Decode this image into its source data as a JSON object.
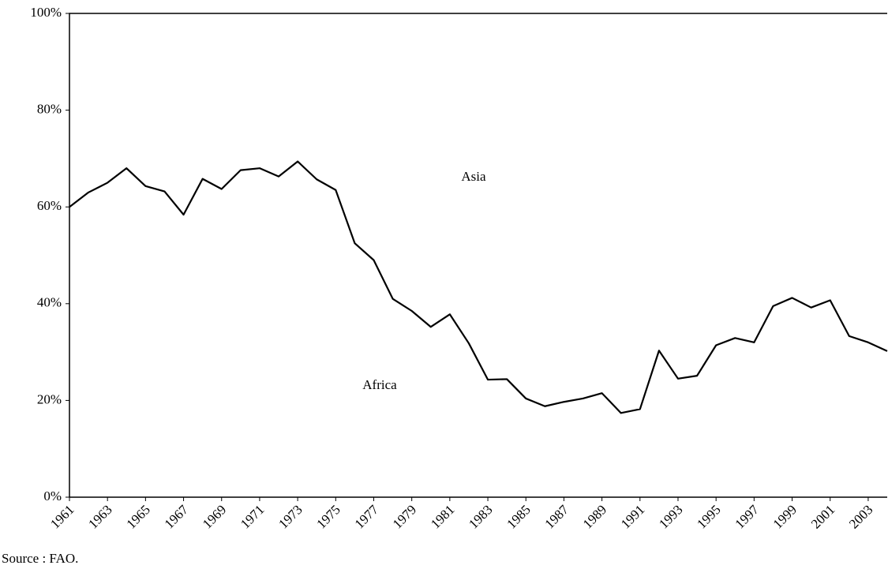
{
  "chart_data": {
    "type": "line",
    "x": [
      1961,
      1962,
      1963,
      1964,
      1965,
      1966,
      1967,
      1968,
      1969,
      1970,
      1971,
      1972,
      1973,
      1974,
      1975,
      1976,
      1977,
      1978,
      1979,
      1980,
      1981,
      1982,
      1983,
      1984,
      1985,
      1986,
      1987,
      1988,
      1989,
      1990,
      1991,
      1992,
      1993,
      1994,
      1995,
      1996,
      1997,
      1998,
      1999,
      2000,
      2001,
      2002,
      2003,
      2004
    ],
    "values": [
      60,
      63,
      65,
      68,
      64.3,
      63.2,
      58.4,
      65.8,
      63.7,
      67.6,
      68,
      66.3,
      69.4,
      65.7,
      63.5,
      52.5,
      49,
      41,
      38.5,
      35.2,
      37.8,
      31.8,
      24.3,
      24.4,
      20.4,
      18.8,
      19.7,
      20.4,
      21.5,
      17.4,
      18.2,
      30.3,
      24.5,
      25.1,
      31.4,
      32.9,
      32,
      39.5,
      41.2,
      39.2,
      40.7,
      33.3,
      32,
      30.2
    ],
    "color": "#000000",
    "xlim": [
      1961,
      2004
    ],
    "xticks": [
      1961,
      1963,
      1965,
      1967,
      1969,
      1971,
      1973,
      1975,
      1977,
      1979,
      1981,
      1983,
      1985,
      1987,
      1989,
      1991,
      1993,
      1995,
      1997,
      1999,
      2001,
      2003
    ],
    "ylim": [
      0,
      100
    ],
    "yticks": [
      {
        "value": 0,
        "label": "0%"
      },
      {
        "value": 20,
        "label": "20%"
      },
      {
        "value": 40,
        "label": "40%"
      },
      {
        "value": 60,
        "label": "60%"
      },
      {
        "value": 80,
        "label": "80%"
      },
      {
        "value": 100,
        "label": "100%"
      }
    ],
    "annotations": [
      {
        "text": "Asia"
      },
      {
        "text": "Africa"
      }
    ],
    "source": "Source : FAO."
  }
}
